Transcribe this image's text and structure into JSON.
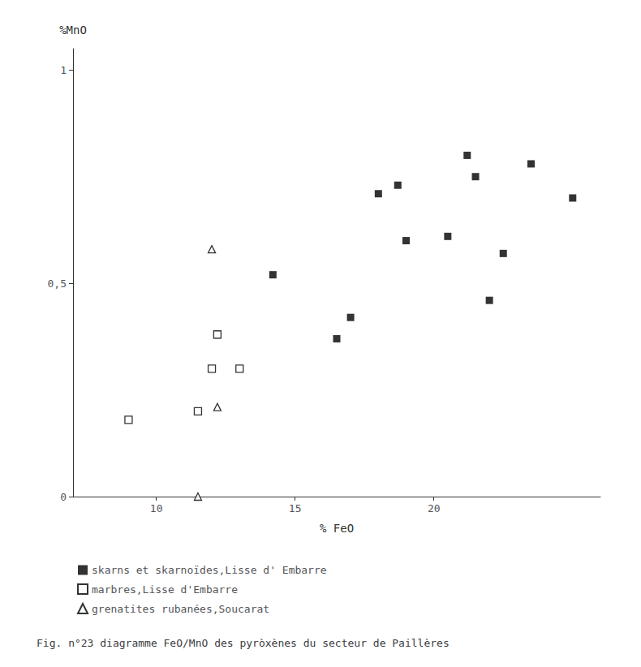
{
  "chart_data": {
    "type": "scatter",
    "title": "Fig. n°23 diagramme FeO/MnO des pyròxènes du secteur de Paillères",
    "xlabel": "% FeO",
    "ylabel": "%MnO",
    "xlim": [
      7,
      26
    ],
    "ylim": [
      0,
      1.05
    ],
    "xticks": [
      10,
      15,
      20
    ],
    "yticks": [
      0,
      {
        "value": 0.5,
        "label": "0,5"
      },
      1
    ],
    "grid": false,
    "legend": "lower left",
    "series": [
      {
        "name": "skarns et skarnоïdes,Lisse d' Embarre",
        "color": "#000000",
        "marker": "filled_square",
        "x": [
          14.2,
          16.5,
          17.0,
          18.0,
          18.7,
          19.0,
          20.5,
          21.2,
          21.5,
          22.0,
          22.5,
          23.5,
          25.0
        ],
        "values": [
          0.52,
          0.37,
          0.42,
          0.71,
          0.73,
          0.6,
          0.61,
          0.8,
          0.75,
          0.46,
          0.57,
          0.78,
          0.7
        ]
      },
      {
        "name": "marbres,Lisse d'Embarre",
        "color": "#000000",
        "marker": "open_square",
        "x": [
          9.0,
          11.5,
          12.0,
          13.0,
          12.2
        ],
        "values": [
          0.18,
          0.2,
          0.3,
          0.3,
          0.38
        ]
      },
      {
        "name": "grenatites rubanées,Soucarat",
        "color": "#000000",
        "marker": "open_triangle",
        "x": [
          11.5,
          12.0,
          12.2
        ],
        "values": [
          0.0,
          0.58,
          0.21
        ]
      }
    ]
  }
}
